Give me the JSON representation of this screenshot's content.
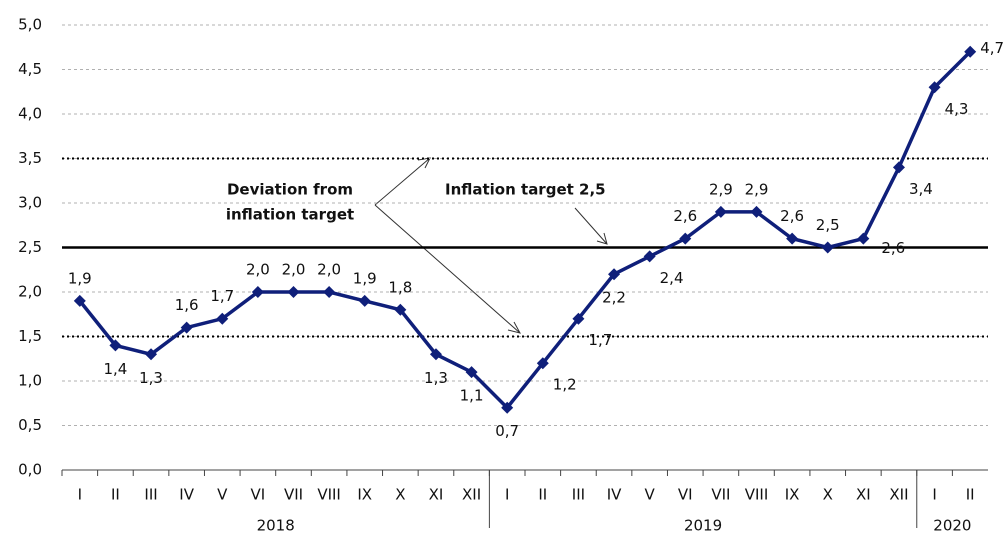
{
  "chart_data": {
    "type": "line",
    "groups": [
      {
        "name": "2018",
        "categories": [
          "I",
          "II",
          "III",
          "IV",
          "V",
          "VI",
          "VII",
          "VIII",
          "IX",
          "X",
          "XI",
          "XII"
        ]
      },
      {
        "name": "2019",
        "categories": [
          "I",
          "II",
          "III",
          "IV",
          "V",
          "VI",
          "VII",
          "VIII",
          "IX",
          "X",
          "XI",
          "XII"
        ]
      },
      {
        "name": "2020",
        "categories": [
          "I",
          "II"
        ]
      }
    ],
    "series": [
      {
        "color": "#0f1f7a",
        "values": [
          1.9,
          1.4,
          1.3,
          1.6,
          1.7,
          2.0,
          2.0,
          2.0,
          1.9,
          1.8,
          1.3,
          1.1,
          0.7,
          1.2,
          1.7,
          2.2,
          2.4,
          2.6,
          2.9,
          2.9,
          2.6,
          2.5,
          2.6,
          3.4,
          4.3,
          4.7
        ],
        "value_labels": [
          "1,9",
          "1,4",
          "1,3",
          "1,6",
          "1,7",
          "2,0",
          "2,0",
          "2,0",
          "1,9",
          "1,8",
          "1,3",
          "1,1",
          "0,7",
          "1,2",
          "1,7",
          "2,2",
          "2,4",
          "2,6",
          "2,9",
          "2,9",
          "2,6",
          "2,5",
          "2,6",
          "3,4",
          "4,3",
          "4,7"
        ]
      }
    ],
    "ylim": [
      0,
      5
    ],
    "yticks": [
      {
        "value": 0,
        "label": "0,0"
      },
      {
        "value": 0.5,
        "label": "0,5"
      },
      {
        "value": 1,
        "label": "1,0"
      },
      {
        "value": 1.5,
        "label": "1,5"
      },
      {
        "value": 2,
        "label": "2,0"
      },
      {
        "value": 2.5,
        "label": "2,5"
      },
      {
        "value": 3,
        "label": "3,0"
      },
      {
        "value": 3.5,
        "label": "3,5"
      },
      {
        "value": 4,
        "label": "4,0"
      },
      {
        "value": 4.5,
        "label": "4,5"
      },
      {
        "value": 5,
        "label": "5,0"
      }
    ],
    "grid": true,
    "target": 2.5,
    "band": [
      1.5,
      3.5
    ],
    "annotations": {
      "deviation": [
        "Deviation from",
        "inflation target"
      ],
      "target": "Inflation target 2,5"
    }
  }
}
